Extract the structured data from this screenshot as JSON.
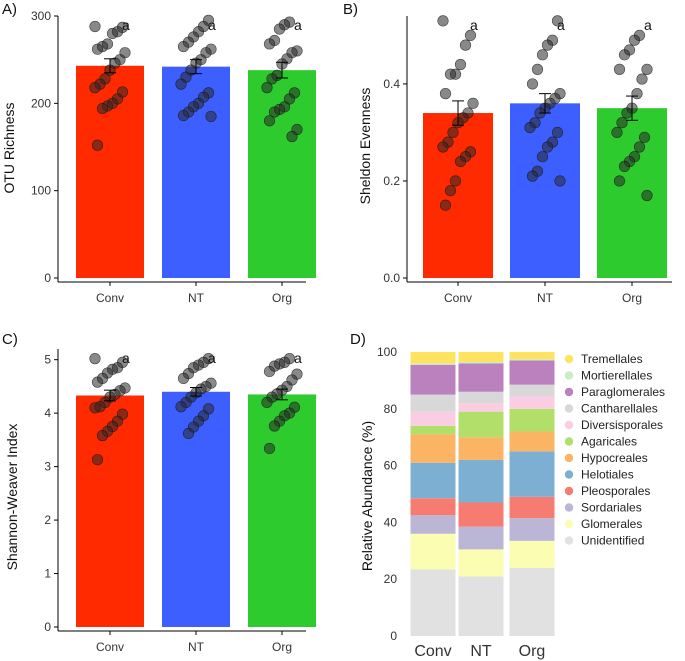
{
  "chart_data": [
    {
      "panel": "A)",
      "type": "bar",
      "ylabel": "OTU Richness",
      "xlabel": "",
      "categories": [
        "Conv",
        "NT",
        "Org"
      ],
      "colors": [
        "#ff2a00",
        "#3e5fff",
        "#2ecb2e"
      ],
      "values": [
        243,
        242,
        238
      ],
      "errors": [
        8,
        8,
        9
      ],
      "letters": [
        "a",
        "a",
        "a"
      ],
      "ylim": [
        0,
        300
      ],
      "yticks": [
        0,
        100,
        200,
        300
      ],
      "points": [
        [
          288,
          287,
          282,
          280,
          268,
          265,
          262,
          258,
          250,
          246,
          238,
          228,
          222,
          218,
          213,
          205,
          200,
          197,
          194,
          152
        ],
        [
          295,
          288,
          282,
          276,
          270,
          265,
          262,
          258,
          250,
          246,
          238,
          230,
          222,
          212,
          207,
          200,
          196,
          190,
          186,
          185
        ],
        [
          293,
          290,
          285,
          272,
          268,
          260,
          258,
          251,
          245,
          232,
          228,
          218,
          212,
          205,
          196,
          193,
          190,
          180,
          170,
          162
        ]
      ]
    },
    {
      "panel": "B)",
      "type": "bar",
      "ylabel": "Sheldon Evenness",
      "xlabel": "",
      "categories": [
        "Conv",
        "NT",
        "Org"
      ],
      "colors": [
        "#ff2a00",
        "#3e5fff",
        "#2ecb2e"
      ],
      "values": [
        0.34,
        0.36,
        0.35
      ],
      "errors": [
        0.025,
        0.02,
        0.025
      ],
      "letters": [
        "a",
        "a",
        "a"
      ],
      "ylim": [
        0,
        0.54
      ],
      "yticks": [
        0.0,
        0.2,
        0.4
      ],
      "ytick_labels": [
        "0.0",
        "0.2",
        "0.4"
      ],
      "points": [
        [
          0.53,
          0.5,
          0.48,
          0.44,
          0.42,
          0.42,
          0.38,
          0.36,
          0.34,
          0.33,
          0.32,
          0.3,
          0.28,
          0.27,
          0.26,
          0.25,
          0.24,
          0.2,
          0.18,
          0.15
        ],
        [
          0.53,
          0.49,
          0.48,
          0.46,
          0.43,
          0.4,
          0.38,
          0.37,
          0.36,
          0.35,
          0.34,
          0.32,
          0.31,
          0.3,
          0.28,
          0.27,
          0.25,
          0.22,
          0.21,
          0.2
        ],
        [
          0.5,
          0.49,
          0.47,
          0.46,
          0.43,
          0.43,
          0.41,
          0.38,
          0.35,
          0.34,
          0.32,
          0.3,
          0.29,
          0.27,
          0.25,
          0.24,
          0.23,
          0.2,
          0.17
        ]
      ]
    },
    {
      "panel": "C)",
      "type": "bar",
      "ylabel": "Shannon-Weaver Index",
      "xlabel": "",
      "categories": [
        "Conv",
        "NT",
        "Org"
      ],
      "colors": [
        "#ff2a00",
        "#3e5fff",
        "#2ecb2e"
      ],
      "values": [
        4.33,
        4.4,
        4.35
      ],
      "errors": [
        0.1,
        0.08,
        0.1
      ],
      "letters": [
        "a",
        "a",
        "a"
      ],
      "ylim": [
        0,
        5.2
      ],
      "yticks": [
        0,
        1,
        2,
        3,
        4,
        5
      ],
      "points": [
        [
          5.02,
          4.95,
          4.85,
          4.82,
          4.75,
          4.65,
          4.58,
          4.47,
          4.42,
          4.35,
          4.3,
          4.2,
          4.12,
          4.1,
          3.98,
          3.85,
          3.75,
          3.66,
          3.58,
          3.13
        ],
        [
          5.02,
          4.95,
          4.9,
          4.85,
          4.74,
          4.65,
          4.56,
          4.5,
          4.45,
          4.38,
          4.3,
          4.2,
          4.12,
          4.08,
          3.95,
          3.85,
          3.74,
          3.62
        ],
        [
          5.02,
          4.95,
          4.92,
          4.88,
          4.78,
          4.73,
          4.62,
          4.5,
          4.43,
          4.36,
          4.3,
          4.2,
          4.11,
          4.0,
          3.95,
          3.85,
          3.76,
          3.34
        ]
      ]
    },
    {
      "panel": "D)",
      "type": "bar",
      "stacked": true,
      "ylabel": "Relative Abundance (%)",
      "xlabel": "",
      "categories": [
        "Conv",
        "NT",
        "Org"
      ],
      "ylim": [
        0,
        100
      ],
      "yticks": [
        0,
        20,
        40,
        60,
        80,
        100
      ],
      "series": [
        {
          "name": "Unidentified",
          "color": "#e1e1e1",
          "values": [
            23.5,
            21.0,
            24.0
          ]
        },
        {
          "name": "Glomerales",
          "color": "#fbfdb3",
          "values": [
            12.5,
            9.5,
            9.5
          ]
        },
        {
          "name": "Sordariales",
          "color": "#bcb6d6",
          "values": [
            6.5,
            8.0,
            8.0
          ]
        },
        {
          "name": "Pleosporales",
          "color": "#f67c72",
          "values": [
            6.0,
            8.5,
            7.5
          ]
        },
        {
          "name": "Helotiales",
          "color": "#7dafd3",
          "values": [
            12.5,
            15.0,
            16.0
          ]
        },
        {
          "name": "Hypocreales",
          "color": "#fab463",
          "values": [
            10.0,
            8.0,
            7.0
          ]
        },
        {
          "name": "Agaricales",
          "color": "#b2de6a",
          "values": [
            3.0,
            9.0,
            8.0
          ]
        },
        {
          "name": "Diversisporales",
          "color": "#fbcde3",
          "values": [
            5.0,
            3.0,
            4.5
          ]
        },
        {
          "name": "Cantharellales",
          "color": "#d8d8d8",
          "values": [
            6.0,
            4.0,
            4.0
          ]
        },
        {
          "name": "Paraglomerales",
          "color": "#bb80be",
          "values": [
            10.5,
            10.0,
            8.5
          ]
        },
        {
          "name": "Mortierellales",
          "color": "#ccebc5",
          "values": [
            0.5,
            0.5,
            0.5
          ]
        },
        {
          "name": "Tremellales",
          "color": "#fee35f",
          "values": [
            4.0,
            3.5,
            2.5
          ]
        }
      ],
      "legend_order": [
        "Tremellales",
        "Mortierellales",
        "Paraglomerales",
        "Cantharellales",
        "Diversisporales",
        "Agaricales",
        "Hypocreales",
        "Helotiales",
        "Pleosporales",
        "Sordariales",
        "Glomerales",
        "Unidentified"
      ]
    }
  ]
}
